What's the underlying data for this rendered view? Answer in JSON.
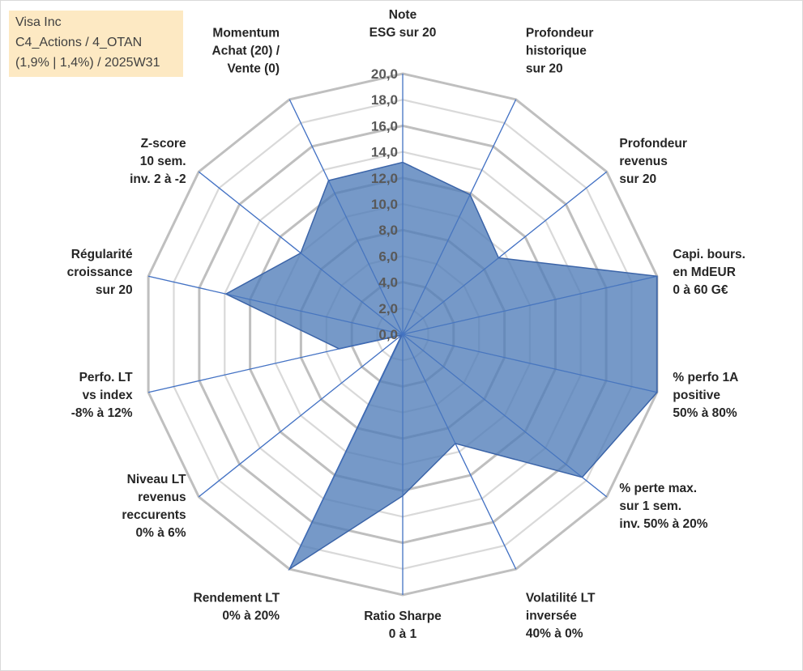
{
  "info": {
    "line1": "Visa Inc",
    "line2": "C4_Actions / 4_OTAN",
    "line3": "(1,9% | 1,4%) / 2025W31"
  },
  "chart_data": {
    "type": "radar",
    "rmin": 0,
    "rmax": 20,
    "tick_step": 2,
    "tick_labels": [
      "0,0",
      "2,0",
      "4,0",
      "6,0",
      "8,0",
      "10,0",
      "12,0",
      "14,0",
      "16,0",
      "18,0",
      "20,0"
    ],
    "grid": true,
    "legend": "none",
    "categories": [
      [
        "Note",
        "ESG sur 20"
      ],
      [
        "Profondeur",
        "historique",
        "sur 20"
      ],
      [
        "Profondeur",
        "revenus",
        "sur 20"
      ],
      [
        "Capi. bours.",
        "en MdEUR",
        "0 à 60 G€"
      ],
      [
        "% perfo 1A",
        "positive",
        "50% à 80%"
      ],
      [
        "% perte max.",
        "sur 1 sem.",
        "inv. 50% à 20%"
      ],
      [
        "Volatilité LT",
        "inversée",
        "40% à 0%"
      ],
      [
        "Ratio Sharpe",
        "0 à 1"
      ],
      [
        "Rendement LT",
        "0% à 20%"
      ],
      [
        "Niveau LT",
        "revenus",
        "reccurents",
        "0% à 6%"
      ],
      [
        "Perfo. LT",
        "vs index",
        "-8% à 12%"
      ],
      [
        "Régularité",
        "croissance",
        "sur 20"
      ],
      [
        "Z-score",
        "10 sem.",
        "inv. 2 à -2"
      ],
      [
        "Momentum",
        "Achat (20) /",
        "Vente (0)"
      ]
    ],
    "series": [
      {
        "values": [
          13.2,
          11.9,
          9.4,
          20.0,
          20.0,
          17.6,
          9.3,
          12.4,
          20.0,
          0.1,
          5.0,
          13.9,
          10.0,
          13.1
        ]
      }
    ],
    "colors": {
      "fill": "#4f7cb8",
      "fill_opacity": 0.78,
      "series_line": "#3b64a8",
      "axis": "#4472c4",
      "outer_grid": "#bfbfbf",
      "inner_grid": "#d9d9d9"
    }
  }
}
